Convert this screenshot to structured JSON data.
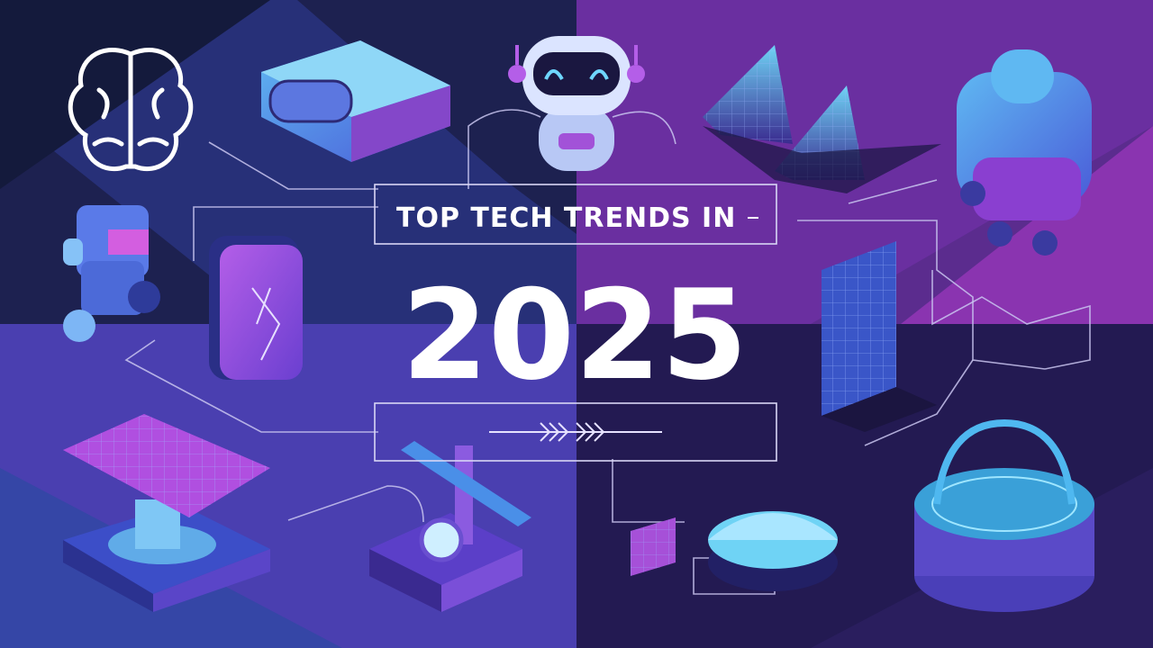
{
  "banner": {
    "heading": "TOP TECH TRENDS IN",
    "year": "2025"
  }
}
